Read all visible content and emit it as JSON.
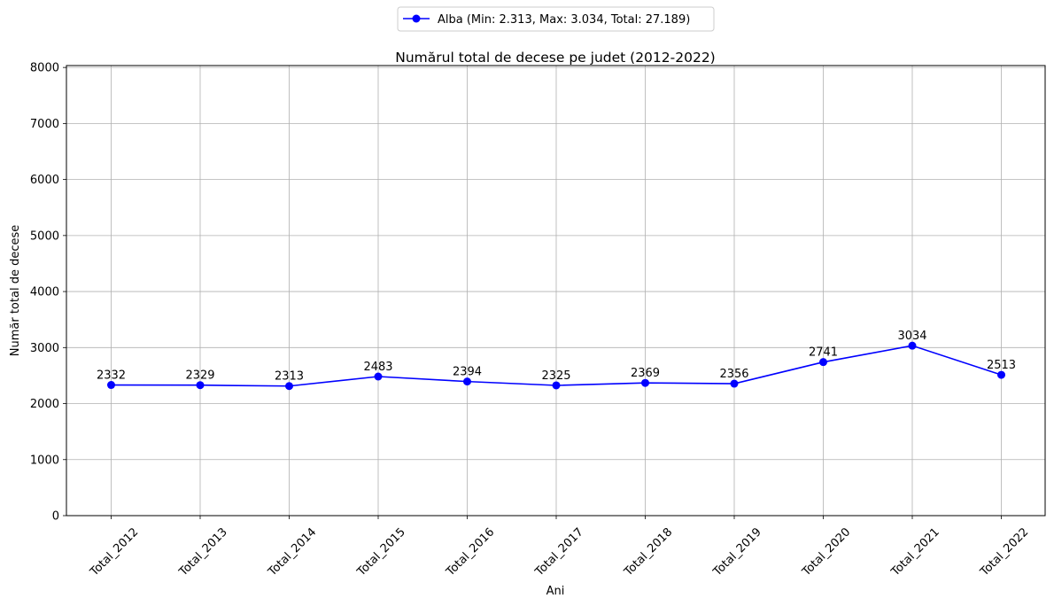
{
  "chart_data": {
    "type": "line",
    "title": "Numărul total de decese pe judet (2012-2022)",
    "xlabel": "Ani",
    "ylabel": "Număr total de decese",
    "categories": [
      "Total_2012",
      "Total_2013",
      "Total_2014",
      "Total_2015",
      "Total_2016",
      "Total_2017",
      "Total_2018",
      "Total_2019",
      "Total_2020",
      "Total_2021",
      "Total_2022"
    ],
    "series": [
      {
        "name": "Alba (Min: 2.313, Max: 3.034, Total: 27.189)",
        "values": [
          2332,
          2329,
          2313,
          2483,
          2394,
          2325,
          2369,
          2356,
          2741,
          3034,
          2513
        ],
        "color": "#0000ff",
        "marker": "circle"
      }
    ],
    "data_labels": [
      "2332",
      "2329",
      "2313",
      "2483",
      "2394",
      "2325",
      "2369",
      "2356",
      "2741",
      "3034",
      "2513"
    ],
    "ylim": [
      0,
      8034
    ],
    "yticks": [
      0,
      1000,
      2000,
      3000,
      4000,
      5000,
      6000,
      7000,
      8000
    ],
    "ytick_labels": [
      "0",
      "1000",
      "2000",
      "3000",
      "4000",
      "5000",
      "6000",
      "7000",
      "8000"
    ],
    "grid": true,
    "legend_position": "top-center",
    "xtick_rotation": 45
  }
}
